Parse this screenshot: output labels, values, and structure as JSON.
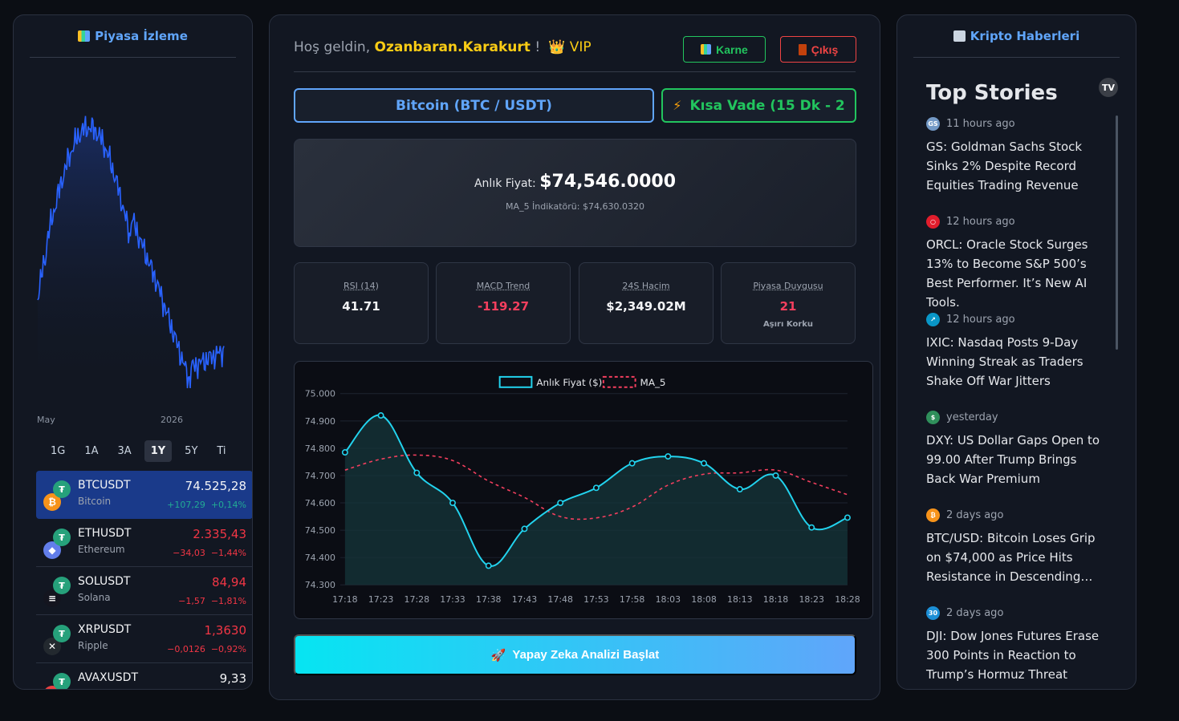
{
  "colors": {
    "accent": "#60a5fa",
    "positive": "#22c55e",
    "negative": "#ef4444",
    "highlight": "#facc15",
    "cyan": "#22d3ee",
    "ma_line": "#f43f5e"
  },
  "left": {
    "title": "Piyasa İzleme",
    "x_ticks": [
      "May",
      "2026"
    ],
    "range_tabs": [
      "1G",
      "1A",
      "3A",
      "1Y",
      "5Y",
      "Ti"
    ],
    "active_range": "1Y",
    "watchlist": [
      {
        "symbol": "BTCUSDT",
        "name": "Bitcoin",
        "price": "74.525,28",
        "change": "+107,29",
        "change_pct": "+0,14%",
        "icon": "bitcoin-icon",
        "icon_glyph": "₿",
        "icon_color": "#f7931a"
      },
      {
        "symbol": "ETHUSDT",
        "name": "Ethereum",
        "price": "2.335,43",
        "change": "−34,03",
        "change_pct": "−1,44%",
        "icon": "ethereum-icon",
        "icon_glyph": "◆",
        "icon_color": "#627eea"
      },
      {
        "symbol": "SOLUSDT",
        "name": "Solana",
        "price": "84,94",
        "change": "−1,57",
        "change_pct": "−1,81%",
        "icon": "solana-icon",
        "icon_glyph": "≡",
        "icon_color": "#14151f"
      },
      {
        "symbol": "XRPUSDT",
        "name": "Ripple",
        "price": "1,3630",
        "change": "−0,0126",
        "change_pct": "−0,92%",
        "icon": "xrp-icon",
        "icon_glyph": "✕",
        "icon_color": "#23292f"
      },
      {
        "symbol": "AVAXUSDT",
        "name": "",
        "price": "9,33",
        "change": "",
        "change_pct": "",
        "icon": "avalanche-icon",
        "icon_glyph": "▲",
        "icon_color": "#e84142"
      }
    ]
  },
  "header": {
    "greeting": "Hoş geldin, ",
    "username": "Ozanbaran.Karakurt",
    "exclaim": " !",
    "vip_label": "👑  VIP",
    "karne_label": "Karne",
    "cikis_label": "Çıkış"
  },
  "selectors": {
    "asset": "Bitcoin (BTC / USDT)",
    "term": "Kısa Vade (15 Dk - 2"
  },
  "price_card": {
    "label": "Anlık Fiyat: ",
    "price": "$74,546.0000",
    "ma_text": "MA_5 İndikatörü: $74,630.0320"
  },
  "stats": [
    {
      "label": "RSI (14)",
      "value": "41.71",
      "sub": ""
    },
    {
      "label": "MACD Trend",
      "value": "-119.27",
      "sub": ""
    },
    {
      "label": "24S Hacim",
      "value": "$2,349.02M",
      "sub": ""
    },
    {
      "label": "Piyasa Duygusu",
      "value": "21",
      "sub": "Aşırı Korku"
    }
  ],
  "chart_data": {
    "type": "line",
    "series": [
      {
        "name": "Anlık Fiyat ($)",
        "values": [
          74785,
          74920,
          74710,
          74600,
          74370,
          74505,
          74600,
          74655,
          74745,
          74770,
          74745,
          74650,
          74700,
          74510,
          74546
        ]
      },
      {
        "name": "MA_5",
        "values": [
          74720,
          74760,
          74775,
          74755,
          74680,
          74620,
          74550,
          74545,
          74585,
          74665,
          74705,
          74710,
          74720,
          74675,
          74630
        ]
      }
    ],
    "categories": [
      "17:18",
      "17:23",
      "17:28",
      "17:33",
      "17:38",
      "17:43",
      "17:48",
      "17:53",
      "17:58",
      "18:03",
      "18:08",
      "18:13",
      "18:18",
      "18:23",
      "18:28"
    ],
    "y_ticks": [
      "75.000",
      "74.900",
      "74.800",
      "74.700",
      "74.600",
      "74.500",
      "74.400",
      "74.300"
    ],
    "ylim": [
      74300,
      75000
    ],
    "legend": "top"
  },
  "ai_button": {
    "label": "Yapay Zeka Analizi Başlat",
    "icon": "rocket-icon"
  },
  "news": {
    "title": "Kripto Haberleri",
    "heading": "Top Stories",
    "tv_logo": "TV",
    "items": [
      {
        "time": "11 hours ago",
        "headline": "GS: Goldman Sachs Stock Sinks 2% Despite Record Equities Trading Revenue",
        "icon": "goldman-icon",
        "glyph": "GS",
        "color": "#7399c6"
      },
      {
        "time": "12 hours ago",
        "headline": "ORCL: Oracle Stock Surges 13% to Become S&P 500’s Best Performer. It’s New AI Tools.",
        "icon": "oracle-icon",
        "glyph": "○",
        "color": "#e11d2c"
      },
      {
        "time": "12 hours ago",
        "headline": "IXIC: Nasdaq Posts 9-Day Winning Streak as Traders Shake Off War Jitters",
        "icon": "nasdaq-icon",
        "glyph": "↗",
        "color": "#0996c7"
      },
      {
        "time": "yesterday",
        "headline": "DXY: US Dollar Gaps Open to 99.00 After Trump Brings Back War Premium",
        "icon": "currency-flags-icon",
        "glyph": "$",
        "color": "#2f8f5b"
      },
      {
        "time": "2 days ago",
        "headline": "BTC/USD: Bitcoin Loses Grip on $74,000 as Price Hits Resistance in Descending…",
        "icon": "bitcoin-icon",
        "glyph": "₿",
        "color": "#f7931a"
      },
      {
        "time": "2 days ago",
        "headline": "DJI: Dow Jones Futures Erase 300 Points in Reaction to Trump’s Hormuz Threat",
        "icon": "dow-icon",
        "glyph": "30",
        "color": "#1c8fd6"
      }
    ]
  }
}
